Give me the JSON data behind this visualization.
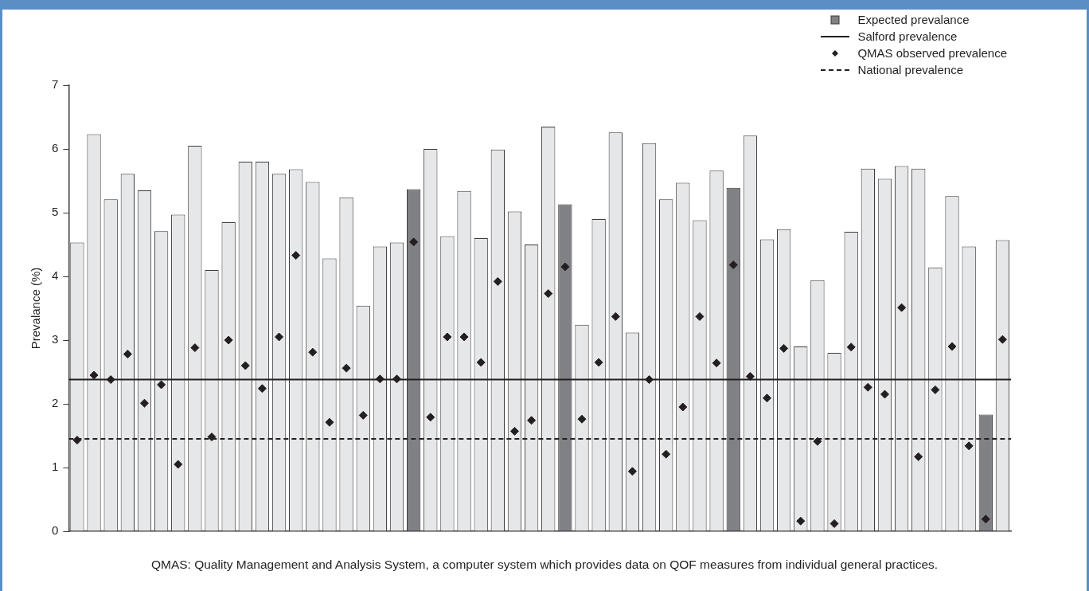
{
  "chart_data": {
    "type": "bar",
    "ylabel": "Prevalance (%)",
    "categories": [
      null,
      null,
      null,
      null,
      null,
      null,
      null,
      null,
      null,
      null,
      null,
      null,
      null,
      null,
      null,
      null,
      null,
      null,
      null,
      null,
      null,
      null,
      null,
      null,
      null,
      null,
      null,
      null,
      null,
      null,
      null,
      null,
      null,
      null,
      null,
      null,
      null,
      null,
      null,
      null,
      null,
      null,
      null,
      null,
      null,
      null,
      null,
      null,
      null,
      null,
      null,
      null,
      null,
      null,
      null,
      null
    ],
    "series": [
      {
        "name": "Expected prevalance",
        "color": "#808184",
        "colors": [
          "#e6e7e9",
          "#e6e7e9",
          "#e6e7e9",
          "#e6e7e9",
          "#e6e7e9",
          "#e6e7e9",
          "#e6e7e9",
          "#e6e7e9",
          "#e6e7e9",
          "#e6e7e9",
          "#e6e7e9",
          "#e6e7e9",
          "#e6e7e9",
          "#e6e7e9",
          "#e6e7e9",
          "#e6e7e9",
          "#e6e7e9",
          "#e6e7e9",
          "#e6e7e9",
          "#e6e7e9",
          "#808184",
          "#e6e7e9",
          "#e6e7e9",
          "#e6e7e9",
          "#e6e7e9",
          "#e6e7e9",
          "#e6e7e9",
          "#e6e7e9",
          "#e6e7e9",
          "#808184",
          "#e6e7e9",
          "#e6e7e9",
          "#e6e7e9",
          "#e6e7e9",
          "#e6e7e9",
          "#e6e7e9",
          "#e6e7e9",
          "#e6e7e9",
          "#e6e7e9",
          "#808184",
          "#e6e7e9",
          "#e6e7e9",
          "#e6e7e9",
          "#e6e7e9",
          "#e6e7e9",
          "#e6e7e9",
          "#e6e7e9",
          "#e6e7e9",
          "#e6e7e9",
          "#e6e7e9",
          "#e6e7e9",
          "#e6e7e9",
          "#e6e7e9",
          "#e6e7e9",
          "#808184",
          "#e6e7e9"
        ],
        "values": [
          4.53,
          6.23,
          5.21,
          5.61,
          5.35,
          4.71,
          4.97,
          6.05,
          4.1,
          4.85,
          5.8,
          5.8,
          5.61,
          5.68,
          5.48,
          4.28,
          5.24,
          3.54,
          4.47,
          4.53,
          5.37,
          6.0,
          4.63,
          5.34,
          4.6,
          5.99,
          5.02,
          4.5,
          6.35,
          5.13,
          3.24,
          4.9,
          6.26,
          3.12,
          6.09,
          5.21,
          5.47,
          4.88,
          5.66,
          5.39,
          6.21,
          4.58,
          4.74,
          2.9,
          3.94,
          2.8,
          4.7,
          5.69,
          5.53,
          5.73,
          5.69,
          4.14,
          5.26,
          4.47,
          1.83,
          4.57
        ]
      },
      {
        "name": "QMAS observed prevalence",
        "type": "scatter",
        "color": "#231f20",
        "values": [
          1.43,
          2.45,
          2.38,
          2.78,
          2.01,
          2.3,
          1.05,
          2.88,
          1.48,
          3.0,
          2.6,
          2.24,
          3.05,
          4.33,
          2.81,
          1.71,
          2.56,
          1.82,
          2.39,
          2.39,
          4.54,
          1.79,
          3.05,
          3.05,
          2.65,
          3.92,
          1.57,
          1.74,
          3.73,
          4.15,
          1.76,
          2.65,
          3.37,
          0.94,
          2.38,
          1.21,
          1.95,
          3.37,
          2.64,
          4.18,
          2.43,
          2.09,
          2.87,
          0.16,
          1.41,
          0.12,
          2.89,
          2.26,
          2.15,
          3.51,
          1.17,
          2.22,
          2.9,
          1.34,
          0.19,
          3.01
        ]
      }
    ],
    "ref_lines": [
      {
        "axis": "y",
        "value": 2.38,
        "label": "Salford prevalence",
        "color": "#231f20",
        "line_style": "solid"
      },
      {
        "axis": "y",
        "value": 1.45,
        "label": "National prevalence",
        "color": "#231f20",
        "line_style": "dashed"
      }
    ],
    "ylim": [
      0,
      7
    ],
    "yticks": [
      0,
      1,
      2,
      3,
      4,
      5,
      6,
      7
    ],
    "marker": "diamond",
    "grid": false,
    "legend": "top right",
    "tick_labels": "y",
    "annotations": [
      "QMAS: Quality Management and Analysis System, a computer system which provides data on QOF measures from individual general practices."
    ]
  }
}
